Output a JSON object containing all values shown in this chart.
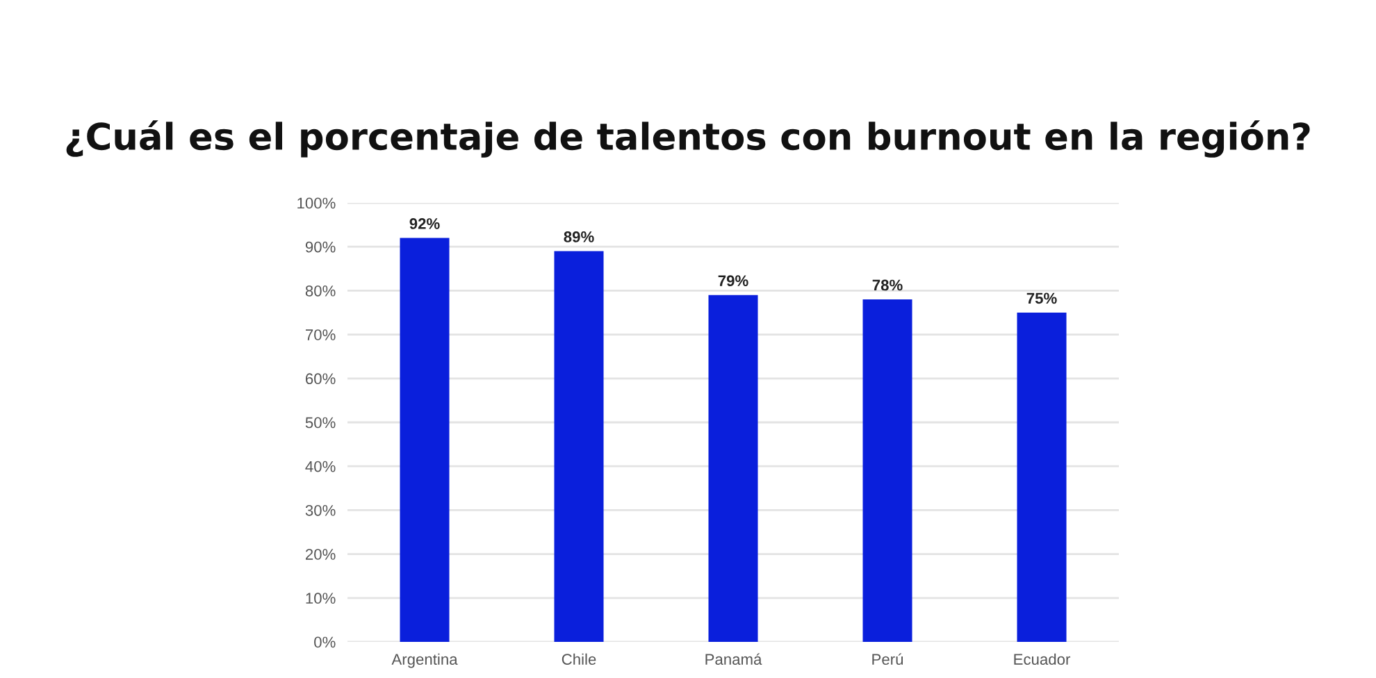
{
  "chart_data": {
    "type": "bar",
    "title": "¿Cuál es el porcentaje de talentos con burnout en la región?",
    "categories": [
      "Argentina",
      "Chile",
      "Panamá",
      "Perú",
      "Ecuador"
    ],
    "values": [
      92,
      89,
      79,
      78,
      75
    ],
    "value_labels": [
      "92%",
      "89%",
      "79%",
      "78%",
      "75%"
    ],
    "color": "#0a1fdc",
    "ylim": [
      0,
      100
    ],
    "yticks": [
      {
        "value": 0,
        "label": "0%"
      },
      {
        "value": 10,
        "label": "10%"
      },
      {
        "value": 20,
        "label": "20%"
      },
      {
        "value": 30,
        "label": "30%"
      },
      {
        "value": 40,
        "label": "40%"
      },
      {
        "value": 50,
        "label": "50%"
      },
      {
        "value": 60,
        "label": "60%"
      },
      {
        "value": 70,
        "label": "70%"
      },
      {
        "value": 80,
        "label": "80%"
      },
      {
        "value": 90,
        "label": "90%"
      },
      {
        "value": 100,
        "label": "100%"
      }
    ],
    "grid": "y",
    "legend": false
  }
}
